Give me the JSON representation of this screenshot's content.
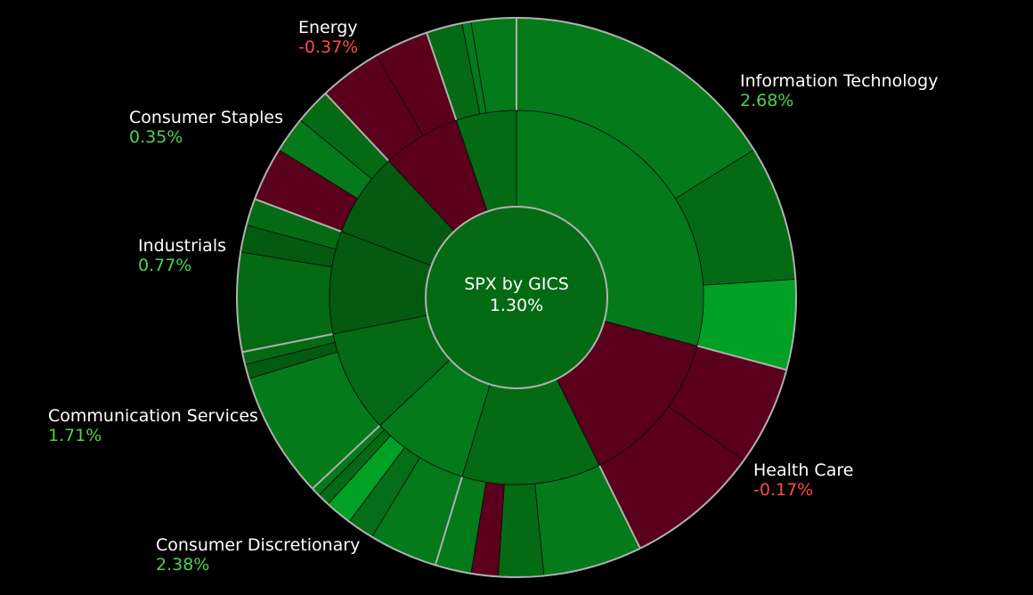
{
  "chart_data": {
    "type": "sunburst",
    "center": {
      "label": "SPX by GICS",
      "value": "1.30%",
      "color": "#046b14"
    },
    "sectors": [
      {
        "name": "Information Technology",
        "pct": "2.68%",
        "share": 0.28,
        "color": "#047a1a",
        "children": [
          {
            "share": 0.155,
            "color": "#047a1a"
          },
          {
            "share": 0.075,
            "color": "#046b14"
          },
          {
            "share": 0.05,
            "color": "#00a124"
          }
        ]
      },
      {
        "name": "Health Care",
        "pct": "-0.17%",
        "share": 0.13,
        "color": "#5a001c",
        "children": [
          {
            "share": 0.055,
            "color": "#5a001c"
          },
          {
            "share": 0.075,
            "color": "#5a001c"
          }
        ]
      },
      {
        "name": "Consumer Discretionary",
        "pct": "2.38%",
        "share": 0.115,
        "color": "#046b14",
        "children": [
          {
            "share": 0.055,
            "color": "#047a1a"
          },
          {
            "share": 0.025,
            "color": "#046b14"
          },
          {
            "share": 0.015,
            "color": "#5a001c"
          },
          {
            "share": 0.02,
            "color": "#047a1a"
          }
        ]
      },
      {
        "name": "",
        "pct": "",
        "share": 0.08,
        "color": "#047a1a",
        "children": [
          {
            "share": 0.038,
            "color": "#047a1a"
          },
          {
            "share": 0.015,
            "color": "#056e18"
          },
          {
            "share": 0.015,
            "color": "#00a124"
          },
          {
            "share": 0.007,
            "color": "#046b14"
          },
          {
            "share": 0.005,
            "color": "#047a1a"
          }
        ]
      },
      {
        "name": "Communication Services",
        "pct": "1.71%",
        "share": 0.085,
        "color": "#046b14",
        "children": [
          {
            "share": 0.07,
            "color": "#047a1a"
          },
          {
            "share": 0.008,
            "color": "#035a10"
          },
          {
            "share": 0.007,
            "color": "#046b14"
          }
        ]
      },
      {
        "name": "Industrials",
        "pct": "0.77%",
        "share": 0.085,
        "color": "#035a10",
        "children": [
          {
            "share": 0.055,
            "color": "#046b14"
          },
          {
            "share": 0.015,
            "color": "#035a10"
          },
          {
            "share": 0.015,
            "color": "#046b14"
          }
        ]
      },
      {
        "name": "Consumer Staples",
        "pct": "0.35%",
        "share": 0.07,
        "color": "#035a10",
        "children": [
          {
            "share": 0.03,
            "color": "#5a001c"
          },
          {
            "share": 0.02,
            "color": "#047a1a"
          },
          {
            "share": 0.02,
            "color": "#046b14"
          }
        ]
      },
      {
        "name": "Energy",
        "pct": "-0.37%",
        "share": 0.065,
        "color": "#5a001c",
        "children": [
          {
            "share": 0.035,
            "color": "#5a001c"
          },
          {
            "share": 0.03,
            "color": "#5a001c"
          }
        ]
      },
      {
        "name": "",
        "pct": "",
        "share": 0.05,
        "color": "#046b14",
        "children": [
          {
            "share": 0.02,
            "color": "#046b14"
          },
          {
            "share": 0.005,
            "color": "#047a1a"
          },
          {
            "share": 0.025,
            "color": "#047a1a"
          }
        ]
      }
    ],
    "labels": [
      {
        "sector": "Information Technology",
        "text": "Information Technology",
        "pct": "2.68%",
        "sign": "pos"
      },
      {
        "sector": "Health Care",
        "text": "Health Care",
        "pct": "-0.17%",
        "sign": "neg"
      },
      {
        "sector": "Consumer Discretionary",
        "text": "Consumer Discretionary",
        "pct": "2.38%",
        "sign": "pos"
      },
      {
        "sector": "Communication Services",
        "text": "Communication Services",
        "pct": "1.71%",
        "sign": "pos"
      },
      {
        "sector": "Industrials",
        "text": "Industrials",
        "pct": "0.77%",
        "sign": "pos"
      },
      {
        "sector": "Consumer Staples",
        "text": "Consumer Staples",
        "pct": "0.35%",
        "sign": "pos"
      },
      {
        "sector": "Energy",
        "text": "Energy",
        "pct": "-0.37%",
        "sign": "neg"
      }
    ],
    "colors": {
      "positive_text": "#4fd14f",
      "negative_text": "#ff4a4a",
      "background": "#000000",
      "divider": "#b0b0b0"
    }
  }
}
